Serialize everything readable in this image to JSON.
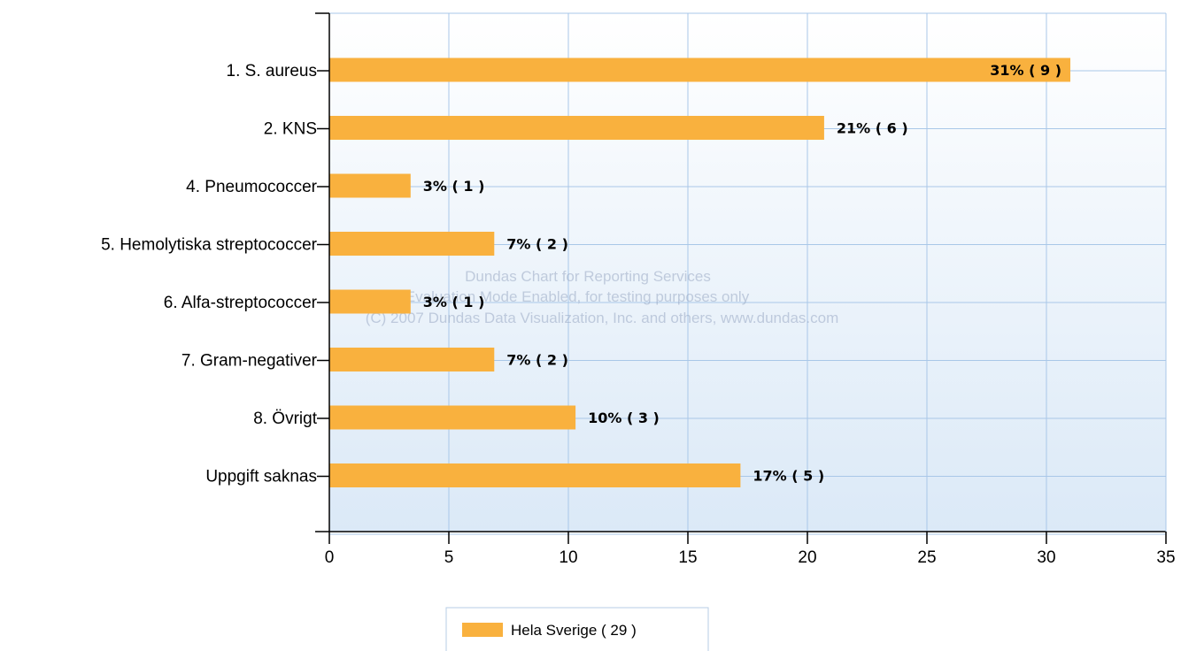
{
  "chart_data": {
    "type": "bar",
    "orientation": "horizontal",
    "categories": [
      "1. S. aureus",
      "2. KNS",
      "4. Pneumococcer",
      "5. Hemolytiska streptococcer",
      "6. Alfa-streptococcer",
      "7. Gram-negativer",
      "8. Övrigt",
      "Uppgift saknas"
    ],
    "series": [
      {
        "name": "Hela Sverige ( 29 )",
        "values": [
          31,
          20.7,
          3.4,
          6.9,
          3.4,
          6.9,
          10.3,
          17.2
        ],
        "labels": [
          "31% ( 9 )",
          "21% ( 6 )",
          "3% ( 1 )",
          "7% ( 2 )",
          "3% ( 1 )",
          "7% ( 2 )",
          "10% ( 3 )",
          "17% ( 5 )"
        ],
        "color": "#f9b13e"
      }
    ],
    "xlim": [
      0,
      35
    ],
    "xticks": [
      0,
      5,
      10,
      15,
      20,
      25,
      30,
      35
    ],
    "grid": true,
    "legend_position": "bottom"
  },
  "watermark": {
    "line1": "Dundas Chart for Reporting Services",
    "line2": "Evaluation Mode Enabled, for testing purposes only",
    "line3": "(C) 2007 Dundas Data Visualization, Inc. and others, www.dundas.com"
  },
  "legend": {
    "label": "Hela Sverige ( 29 )"
  },
  "colors": {
    "bar": "#f9b13e",
    "grid": "#a9c7e8",
    "plot_bg_top": "#ffffff",
    "plot_bg_bottom": "#dbe9f7"
  }
}
